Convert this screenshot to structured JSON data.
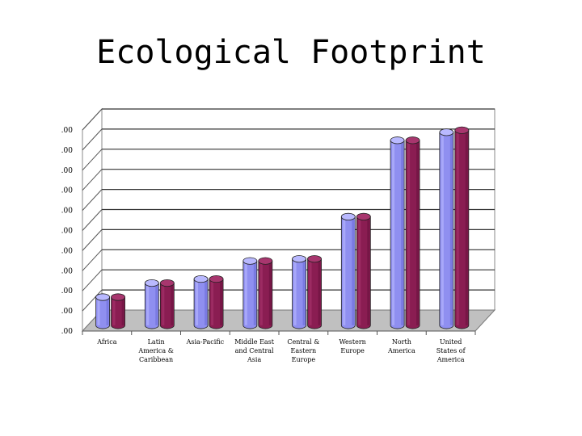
{
  "slide": {
    "title": "Ecological Footprint"
  },
  "chart_data": {
    "type": "bar",
    "style": "3d-cylinder",
    "title": "",
    "xlabel": "",
    "ylabel": "",
    "ylim": [
      0,
      10
    ],
    "yticks": [
      ".00",
      ".00",
      ".00",
      ".00",
      ".00",
      ".00",
      ".00",
      ".00",
      ".00",
      ".00",
      ".00"
    ],
    "grid": true,
    "legend": "none",
    "categories": [
      [
        "Africa"
      ],
      [
        "Latin",
        "America &",
        "Caribbean"
      ],
      [
        "Asia-Pacific"
      ],
      [
        "Middle East",
        "and Central",
        "Asia"
      ],
      [
        "Central &",
        "Eastern",
        "Europe"
      ],
      [
        "Western",
        "Europe"
      ],
      [
        "North",
        "America"
      ],
      [
        "United",
        "States of",
        "America"
      ]
    ],
    "series": [
      {
        "color": "#8f8ff0",
        "values": [
          1.4,
          2.1,
          2.3,
          3.2,
          3.3,
          5.4,
          9.2,
          9.6
        ]
      },
      {
        "color": "#8a1d52",
        "values": [
          1.4,
          2.1,
          2.3,
          3.2,
          3.3,
          5.4,
          9.2,
          9.7
        ]
      }
    ]
  }
}
